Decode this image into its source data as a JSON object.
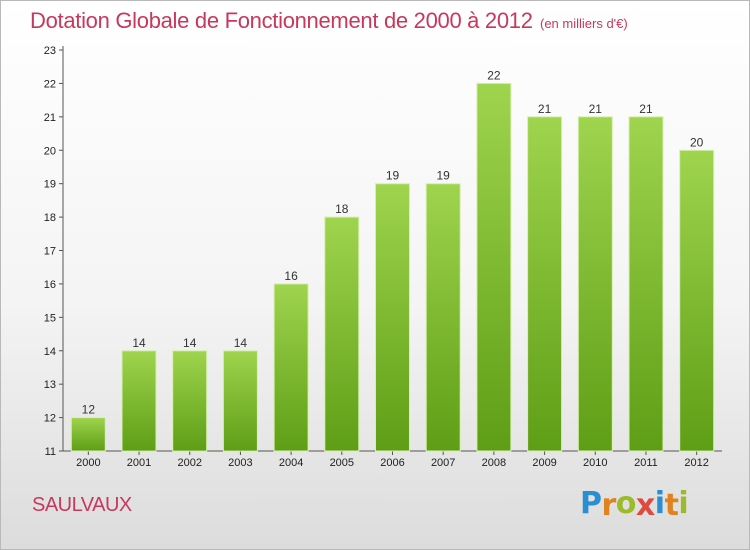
{
  "title": "Dotation Globale de Fonctionnement de 2000 à 2012",
  "subtitle": "(en milliers d'€)",
  "town": "SAULVAUX",
  "logo": {
    "text": "Proxiti",
    "colors": [
      "#2a8fd0",
      "#e0821e",
      "#9bbb2a",
      "#e04a3e",
      "#2a8fd0",
      "#e0821e",
      "#9bbb2a"
    ]
  },
  "colors": {
    "bar_light": "#9fd44e",
    "bar_dark": "#5e9e16",
    "title": "#c8385c"
  },
  "chart_data": {
    "type": "bar",
    "categories": [
      "2000",
      "2001",
      "2002",
      "2003",
      "2004",
      "2005",
      "2006",
      "2007",
      "2008",
      "2009",
      "2010",
      "2011",
      "2012"
    ],
    "values": [
      12,
      14,
      14,
      14,
      16,
      18,
      19,
      19,
      22,
      21,
      21,
      21,
      20
    ],
    "data_labels": [
      "12",
      "14",
      "14",
      "14",
      "16",
      "18",
      "19",
      "19",
      "22",
      "21",
      "21",
      "21",
      "20"
    ],
    "yticks": [
      "11",
      "12",
      "13",
      "14",
      "15",
      "16",
      "17",
      "18",
      "19",
      "20",
      "21",
      "22",
      "23"
    ],
    "ylim": [
      11,
      23
    ],
    "grid": false,
    "xlabel": "",
    "ylabel": ""
  }
}
